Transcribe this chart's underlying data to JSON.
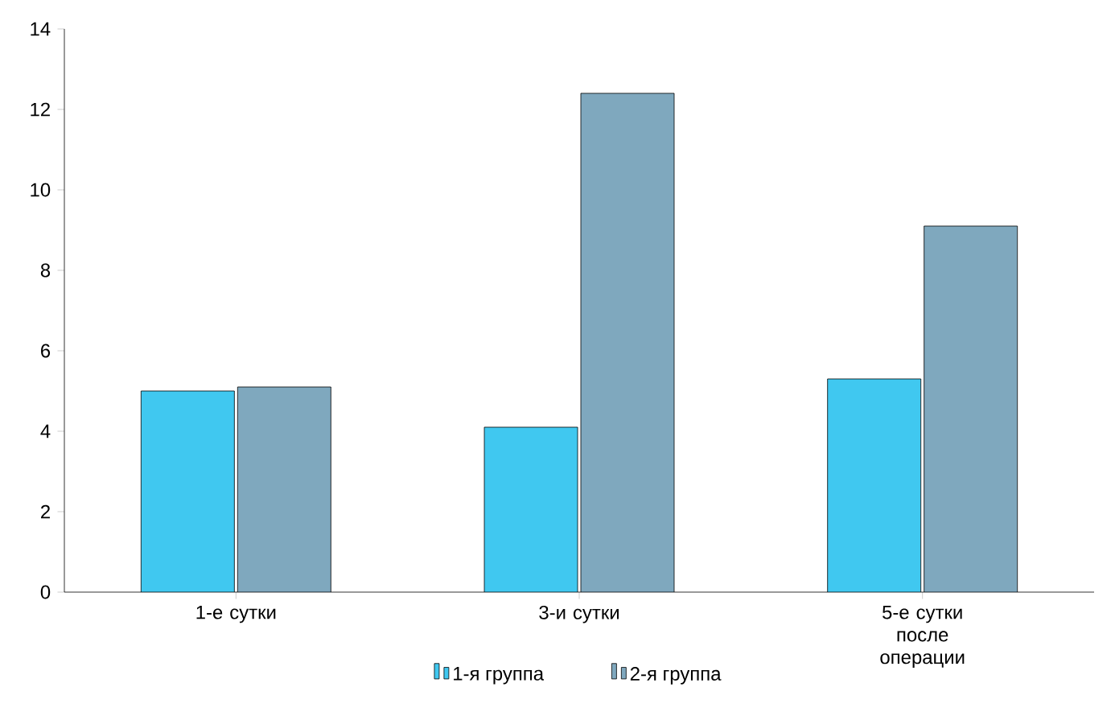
{
  "chart_data": {
    "type": "bar",
    "categories": [
      "1-е сутки",
      "3-и сутки",
      "5-е сутки после операции"
    ],
    "series": [
      {
        "name": "1-я группа",
        "color": "#40c8f0",
        "values": [
          5.0,
          4.1,
          5.3
        ]
      },
      {
        "name": "2-я группа",
        "color": "#7fa8be",
        "values": [
          5.1,
          12.4,
          9.1
        ]
      }
    ],
    "ylim": [
      0,
      14
    ],
    "yticks": [
      0,
      2,
      4,
      6,
      8,
      10,
      12,
      14
    ],
    "legend": "bottom"
  }
}
